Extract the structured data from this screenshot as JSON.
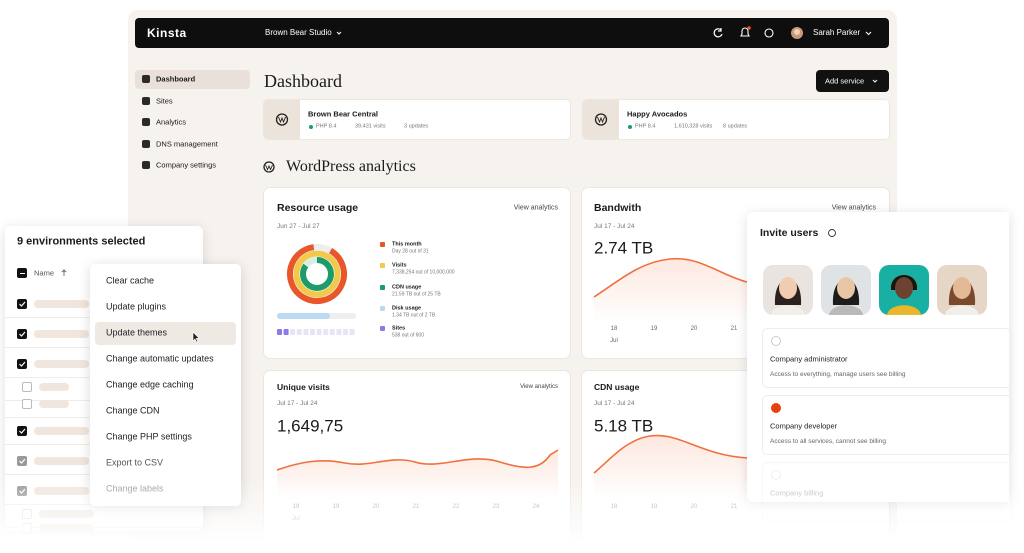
{
  "topbar": {
    "logo": "Kinsta",
    "company": "Brown Bear Studio",
    "user": "Sarah Parker"
  },
  "sidebar": [
    "Dashboard",
    "Sites",
    "Analytics",
    "DNS management",
    "Company settings"
  ],
  "page_title": "Dashboard",
  "add_service": "Add service",
  "sites": [
    {
      "name": "Brown Bear Central",
      "php": "PHP 8.4",
      "visits": "39,431 visits",
      "updates": "3 updates"
    },
    {
      "name": "Happy Avocados",
      "php": "PHP 8.4",
      "visits": "1,610,328 visits",
      "updates": "8 updates"
    }
  ],
  "section_title": "WordPress analytics",
  "resource": {
    "title": "Resource usage",
    "link": "View analytics",
    "range": "Jun 27 - Jul 27",
    "legend": [
      {
        "label": "This month",
        "detail": "Day 28 out of 31",
        "color": "#e8572c"
      },
      {
        "label": "Visits",
        "detail": "7,338,254 out of 10,000,000",
        "color": "#f2c94c"
      },
      {
        "label": "CDN usage",
        "detail": "21.59 TB out of 25 TB",
        "color": "#1e9b6b"
      },
      {
        "label": "Disk usage",
        "detail": "1.34 TB out of 2 TB",
        "color": "#bcd9f2"
      },
      {
        "label": "Sites",
        "detail": "538 out of 600",
        "color": "#8b7be8"
      }
    ]
  },
  "bandwidth": {
    "title": "Bandwith",
    "link": "View analytics",
    "range": "Jul 17 - Jul 24",
    "value": "2.74 TB",
    "ticks": [
      "18",
      "19",
      "20",
      "21"
    ],
    "month": "Jul"
  },
  "unique_visits": {
    "title": "Unique visits",
    "link": "View analytics",
    "range": "Jul 17 - Jul 24",
    "value": "1,649,75",
    "ticks": [
      "18",
      "19",
      "20",
      "21",
      "22",
      "23",
      "24"
    ],
    "month": "Jul"
  },
  "cdn": {
    "title": "CDN usage",
    "range": "Jul 17 - Jul 24",
    "value": "5.18 TB",
    "ticks": [
      "18",
      "19",
      "20",
      "21"
    ]
  },
  "bulk": {
    "title": "9 environments selected",
    "column": "Name",
    "menu": [
      "Clear cache",
      "Update plugins",
      "Update themes",
      "Change automatic updates",
      "Change edge caching",
      "Change CDN",
      "Change PHP settings",
      "Export to CSV",
      "Change labels"
    ]
  },
  "invite": {
    "title": "Invite users",
    "roles": [
      {
        "name": "Company administrator",
        "desc": "Access to everything, manage users see billing"
      },
      {
        "name": "Company developer",
        "desc": "Access to all services, cannot see billing"
      },
      {
        "name": "Company billing"
      }
    ]
  }
}
